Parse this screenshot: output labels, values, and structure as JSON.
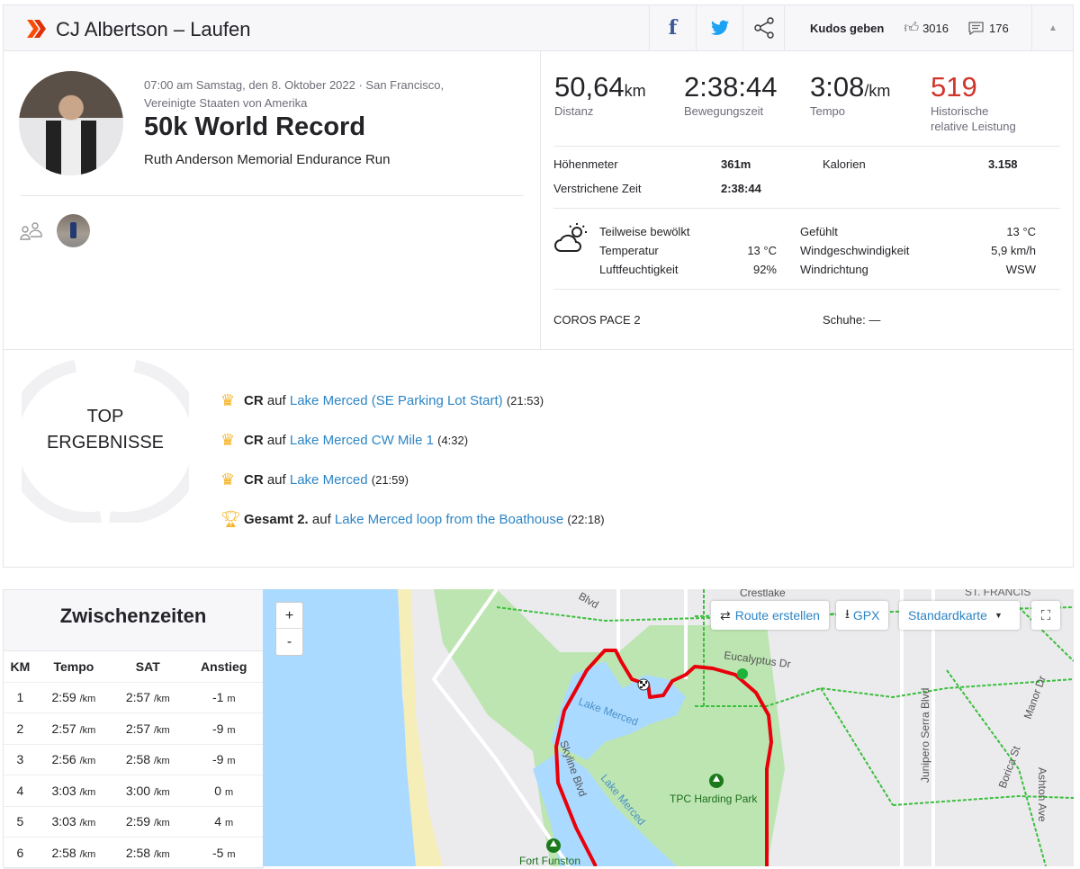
{
  "header": {
    "title": "CJ Albertson – Laufen",
    "kudos_label": "Kudos geben",
    "kudos_count": "3016",
    "comments_count": "176",
    "icons": [
      "strava-logo",
      "facebook-icon",
      "twitter-icon",
      "share-icon",
      "thumbs-up-icon",
      "comment-icon",
      "collapse-caret-icon"
    ]
  },
  "activity": {
    "datetime": "07:00 am Samstag, den 8. Oktober 2022 · San Francisco,",
    "location": "Vereinigte Staaten von Amerika",
    "name": "50k World Record",
    "description": "Ruth Anderson Memorial Endurance Run"
  },
  "stats": {
    "distance": {
      "value": "50,64",
      "unit": "km",
      "label": "Distanz"
    },
    "moving_time": {
      "value": "2:38:44",
      "label": "Bewegungszeit"
    },
    "pace": {
      "value": "3:08",
      "unit": "/km",
      "label": "Tempo"
    },
    "relative_effort": {
      "value": "519",
      "label1": "Historische",
      "label2": "relative Leistung",
      "color": "#d0352b"
    },
    "elevation_label": "Höhenmeter",
    "elevation": "361m",
    "calories_label": "Kalorien",
    "calories": "3.158",
    "elapsed_label": "Verstrichene Zeit",
    "elapsed": "2:38:44"
  },
  "weather": {
    "condition": "Teilweise bewölkt",
    "temp_label": "Temperatur",
    "temp": "13 °C",
    "humidity_label": "Luftfeuchtigkeit",
    "humidity": "92%",
    "feels_label": "Gefühlt",
    "feels": "13 °C",
    "wind_speed_label": "Windgeschwindigkeit",
    "wind_speed": "5,9 km/h",
    "wind_dir_label": "Windrichtung",
    "wind_dir": "WSW"
  },
  "device": "COROS PACE 2",
  "shoes_label": "Schuhe:",
  "shoes": "—",
  "top_results": {
    "title1": "TOP",
    "title2": "ERGEBNISSE",
    "items": [
      {
        "prefix": "CR",
        "auf": "auf",
        "segment": "Lake Merced (SE Parking Lot Start)",
        "time": "(21:53)",
        "icon": "crown-icon"
      },
      {
        "prefix": "CR",
        "auf": "auf",
        "segment": "Lake Merced CW Mile 1",
        "time": "(4:32)",
        "icon": "crown-icon"
      },
      {
        "prefix": "CR",
        "auf": "auf",
        "segment": "Lake Merced",
        "time": "(21:59)",
        "icon": "crown-icon"
      },
      {
        "prefix": "Gesamt 2.",
        "auf": "auf",
        "segment": "Lake Merced loop from the Boathouse",
        "time": "(22:18)",
        "icon": "trophy-2-icon"
      }
    ]
  },
  "splits": {
    "title": "Zwischenzeiten",
    "columns": [
      "KM",
      "Tempo",
      "SAT",
      "Anstieg"
    ],
    "pace_unit": "/km",
    "elev_unit": "m",
    "rows": [
      [
        "1",
        "2:59",
        "2:57",
        "-1"
      ],
      [
        "2",
        "2:57",
        "2:57",
        "-9"
      ],
      [
        "3",
        "2:56",
        "2:58",
        "-9"
      ],
      [
        "4",
        "3:03",
        "3:00",
        "0"
      ],
      [
        "5",
        "3:03",
        "2:59",
        "4"
      ],
      [
        "6",
        "2:58",
        "2:58",
        "-5"
      ]
    ]
  },
  "map": {
    "zoom_in": "+",
    "zoom_out": "-",
    "route_label": "Route erstellen",
    "gpx_label": "GPX",
    "map_type": "Standardkarte",
    "labels": {
      "lake1": "Lake Merced",
      "lake2": "Lake Merced",
      "park": "TPC Harding Park",
      "fort": "Fort Funston",
      "eucalyptus": "Eucalyptus Dr",
      "junipero": "Junipero Serra Blvd",
      "borica": "Borica St",
      "manor": "Manor Dr",
      "ashton": "Ashton Ave",
      "crestlake": "Crestlake",
      "stfrancis": "ST. FRANCIS",
      "skyline": "Skyline Blvd",
      "blvd": "Blvd"
    },
    "route_color": "#e8000b"
  }
}
